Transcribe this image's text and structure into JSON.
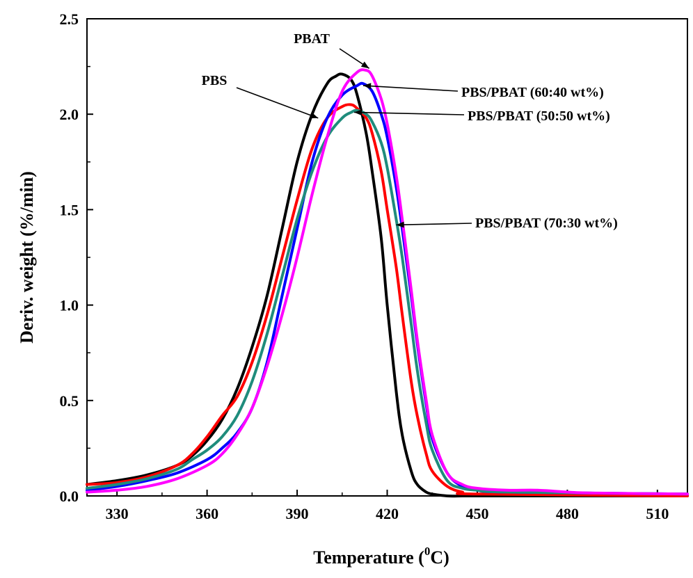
{
  "chart_data": {
    "type": "line",
    "title": "",
    "xlabel": "Temperature (",
    "xlabel_sup": "0",
    "xlabel_end": "C)",
    "ylabel": "Deriv. weight (%/min)",
    "xlim": [
      320,
      520
    ],
    "ylim": [
      0,
      2.5
    ],
    "x_ticks": [
      330,
      360,
      390,
      420,
      450,
      480,
      510
    ],
    "x_tick_labels": [
      "330",
      "360",
      "390",
      "420",
      "450",
      "480",
      "510"
    ],
    "y_ticks": [
      0,
      0.5,
      1,
      1.5,
      2,
      2.5
    ],
    "y_tick_labels": [
      "0.0",
      "0.5",
      "1.0",
      "1.5",
      "2.0",
      "2.5"
    ],
    "grid": false,
    "legend": "none",
    "series": [
      {
        "name": "PBS",
        "color": "#000000",
        "x": [
          320,
          330,
          340,
          350,
          355,
          360,
          365,
          370,
          375,
          380,
          385,
          390,
          395,
          400,
          403,
          405,
          408,
          410,
          413,
          415,
          418,
          420,
          423,
          425,
          428,
          430,
          433,
          435,
          440,
          445,
          450,
          520
        ],
        "y": [
          0.06,
          0.08,
          0.11,
          0.16,
          0.21,
          0.29,
          0.4,
          0.56,
          0.78,
          1.05,
          1.4,
          1.75,
          2.0,
          2.16,
          2.2,
          2.21,
          2.18,
          2.1,
          1.9,
          1.7,
          1.35,
          1.0,
          0.55,
          0.32,
          0.13,
          0.06,
          0.02,
          0.01,
          0.0,
          0.0,
          0.0,
          0.0
        ]
      },
      {
        "name": "PBS/PBAT (70:30 wt%)",
        "color": "#ff0000",
        "x": [
          320,
          330,
          340,
          350,
          355,
          360,
          365,
          370,
          375,
          380,
          385,
          390,
          395,
          400,
          405,
          408,
          410,
          413,
          415,
          418,
          420,
          423,
          425,
          428,
          430,
          433,
          435,
          440,
          445,
          450,
          520
        ],
        "y": [
          0.06,
          0.07,
          0.1,
          0.16,
          0.22,
          0.31,
          0.42,
          0.52,
          0.7,
          0.95,
          1.25,
          1.55,
          1.82,
          1.98,
          2.04,
          2.05,
          2.03,
          1.98,
          1.9,
          1.7,
          1.5,
          1.2,
          0.95,
          0.6,
          0.42,
          0.22,
          0.13,
          0.05,
          0.02,
          0.01,
          0.0
        ]
      },
      {
        "name": "PBS/PBAT (60:40 wt%)",
        "color": "#0000ff",
        "x": [
          320,
          330,
          340,
          350,
          360,
          365,
          370,
          375,
          380,
          385,
          390,
          395,
          400,
          405,
          410,
          412,
          415,
          418,
          420,
          423,
          425,
          428,
          430,
          433,
          435,
          440,
          445,
          450,
          460,
          520
        ],
        "y": [
          0.03,
          0.05,
          0.08,
          0.12,
          0.19,
          0.25,
          0.33,
          0.46,
          0.7,
          1.05,
          1.4,
          1.75,
          1.98,
          2.1,
          2.15,
          2.16,
          2.12,
          2.0,
          1.88,
          1.62,
          1.4,
          1.05,
          0.8,
          0.48,
          0.3,
          0.12,
          0.05,
          0.03,
          0.02,
          0.01
        ]
      },
      {
        "name": "PBS/PBAT (50:50 wt%)",
        "color": "#1f8c7c",
        "x": [
          320,
          330,
          340,
          350,
          355,
          360,
          365,
          370,
          375,
          380,
          385,
          390,
          395,
          400,
          405,
          408,
          410,
          413,
          415,
          418,
          420,
          423,
          425,
          428,
          430,
          433,
          435,
          440,
          445,
          450,
          460,
          520
        ],
        "y": [
          0.04,
          0.06,
          0.09,
          0.14,
          0.19,
          0.24,
          0.31,
          0.42,
          0.6,
          0.85,
          1.15,
          1.45,
          1.7,
          1.88,
          1.98,
          2.01,
          2.02,
          2.0,
          1.96,
          1.85,
          1.72,
          1.45,
          1.25,
          0.9,
          0.66,
          0.38,
          0.24,
          0.08,
          0.04,
          0.03,
          0.02,
          0.01
        ]
      },
      {
        "name": "PBAT",
        "color": "#ff00ff",
        "x": [
          320,
          330,
          340,
          350,
          360,
          365,
          370,
          375,
          380,
          385,
          390,
          395,
          400,
          405,
          410,
          413,
          415,
          418,
          420,
          423,
          425,
          428,
          430,
          433,
          435,
          440,
          445,
          450,
          460,
          470,
          480,
          490,
          520
        ],
        "y": [
          0.02,
          0.03,
          0.05,
          0.09,
          0.16,
          0.22,
          0.32,
          0.46,
          0.68,
          0.95,
          1.25,
          1.58,
          1.88,
          2.12,
          2.22,
          2.23,
          2.2,
          2.08,
          1.95,
          1.68,
          1.45,
          1.08,
          0.82,
          0.5,
          0.32,
          0.12,
          0.06,
          0.04,
          0.03,
          0.03,
          0.02,
          0.015,
          0.01
        ]
      }
    ],
    "annotations": [
      {
        "text": "PBAT",
        "series": "PBAT"
      },
      {
        "text": "PBS",
        "series": "PBS"
      },
      {
        "text": "PBS/PBAT (60:40 wt%)",
        "series": "PBS/PBAT (60:40 wt%)"
      },
      {
        "text": "PBS/PBAT (50:50 wt%)",
        "series": "PBS/PBAT (50:50 wt%)"
      },
      {
        "text": "PBS/PBAT (70:30 wt%)",
        "series": "PBS/PBAT (70:30 wt%)"
      }
    ]
  }
}
